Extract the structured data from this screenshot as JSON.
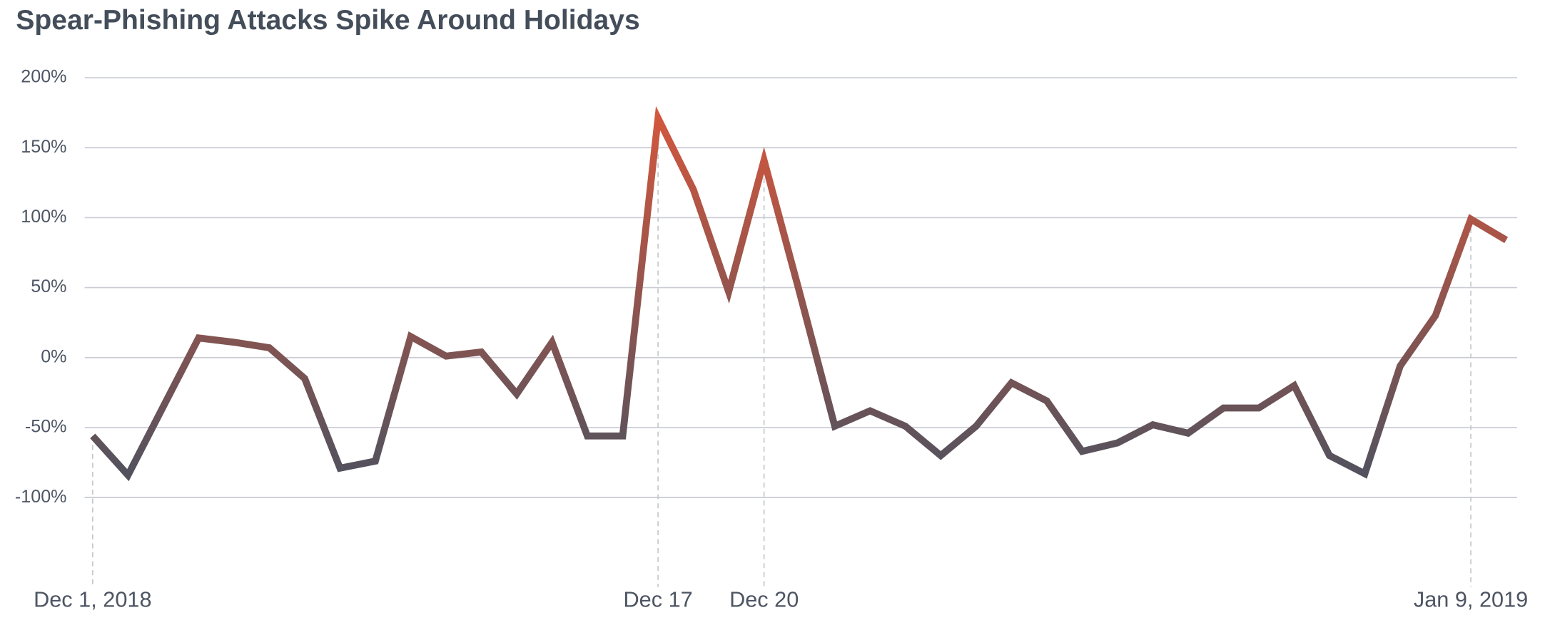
{
  "chart_data": {
    "type": "line",
    "title": "Spear-Phishing Attacks Spike Around Holidays",
    "categories": [
      "Dec 1, 2018",
      null,
      null,
      null,
      null,
      null,
      null,
      null,
      null,
      null,
      null,
      null,
      null,
      null,
      null,
      null,
      "Dec 17",
      null,
      null,
      "Dec 20",
      null,
      null,
      null,
      null,
      null,
      null,
      null,
      null,
      null,
      null,
      null,
      null,
      null,
      null,
      null,
      null,
      null,
      null,
      null,
      "Jan 9, 2019",
      null
    ],
    "series": [
      {
        "values": [
          -56,
          -84,
          -35,
          14,
          11,
          7,
          -15,
          -79,
          -74,
          15,
          1,
          4,
          -26,
          11,
          -56,
          -56,
          171,
          120,
          47,
          141,
          47,
          -49,
          -38,
          -49,
          -70,
          -49,
          -18,
          -31,
          -67,
          -61,
          -48,
          -54,
          -36,
          -36,
          -20,
          -70,
          -83,
          -6,
          30,
          99,
          84
        ],
        "gradient": [
          "#4a5260",
          "#e0573a"
        ]
      }
    ],
    "ylim": [
      -100,
      200
    ],
    "yticks": [
      {
        "value": -100,
        "label": "-100%"
      },
      {
        "value": -50,
        "label": "-50%"
      },
      {
        "value": 0,
        "label": "0%"
      },
      {
        "value": 50,
        "label": "50%"
      },
      {
        "value": 100,
        "label": "100%"
      },
      {
        "value": 150,
        "label": "150%"
      },
      {
        "value": 200,
        "label": "200%"
      }
    ],
    "grid": true
  }
}
